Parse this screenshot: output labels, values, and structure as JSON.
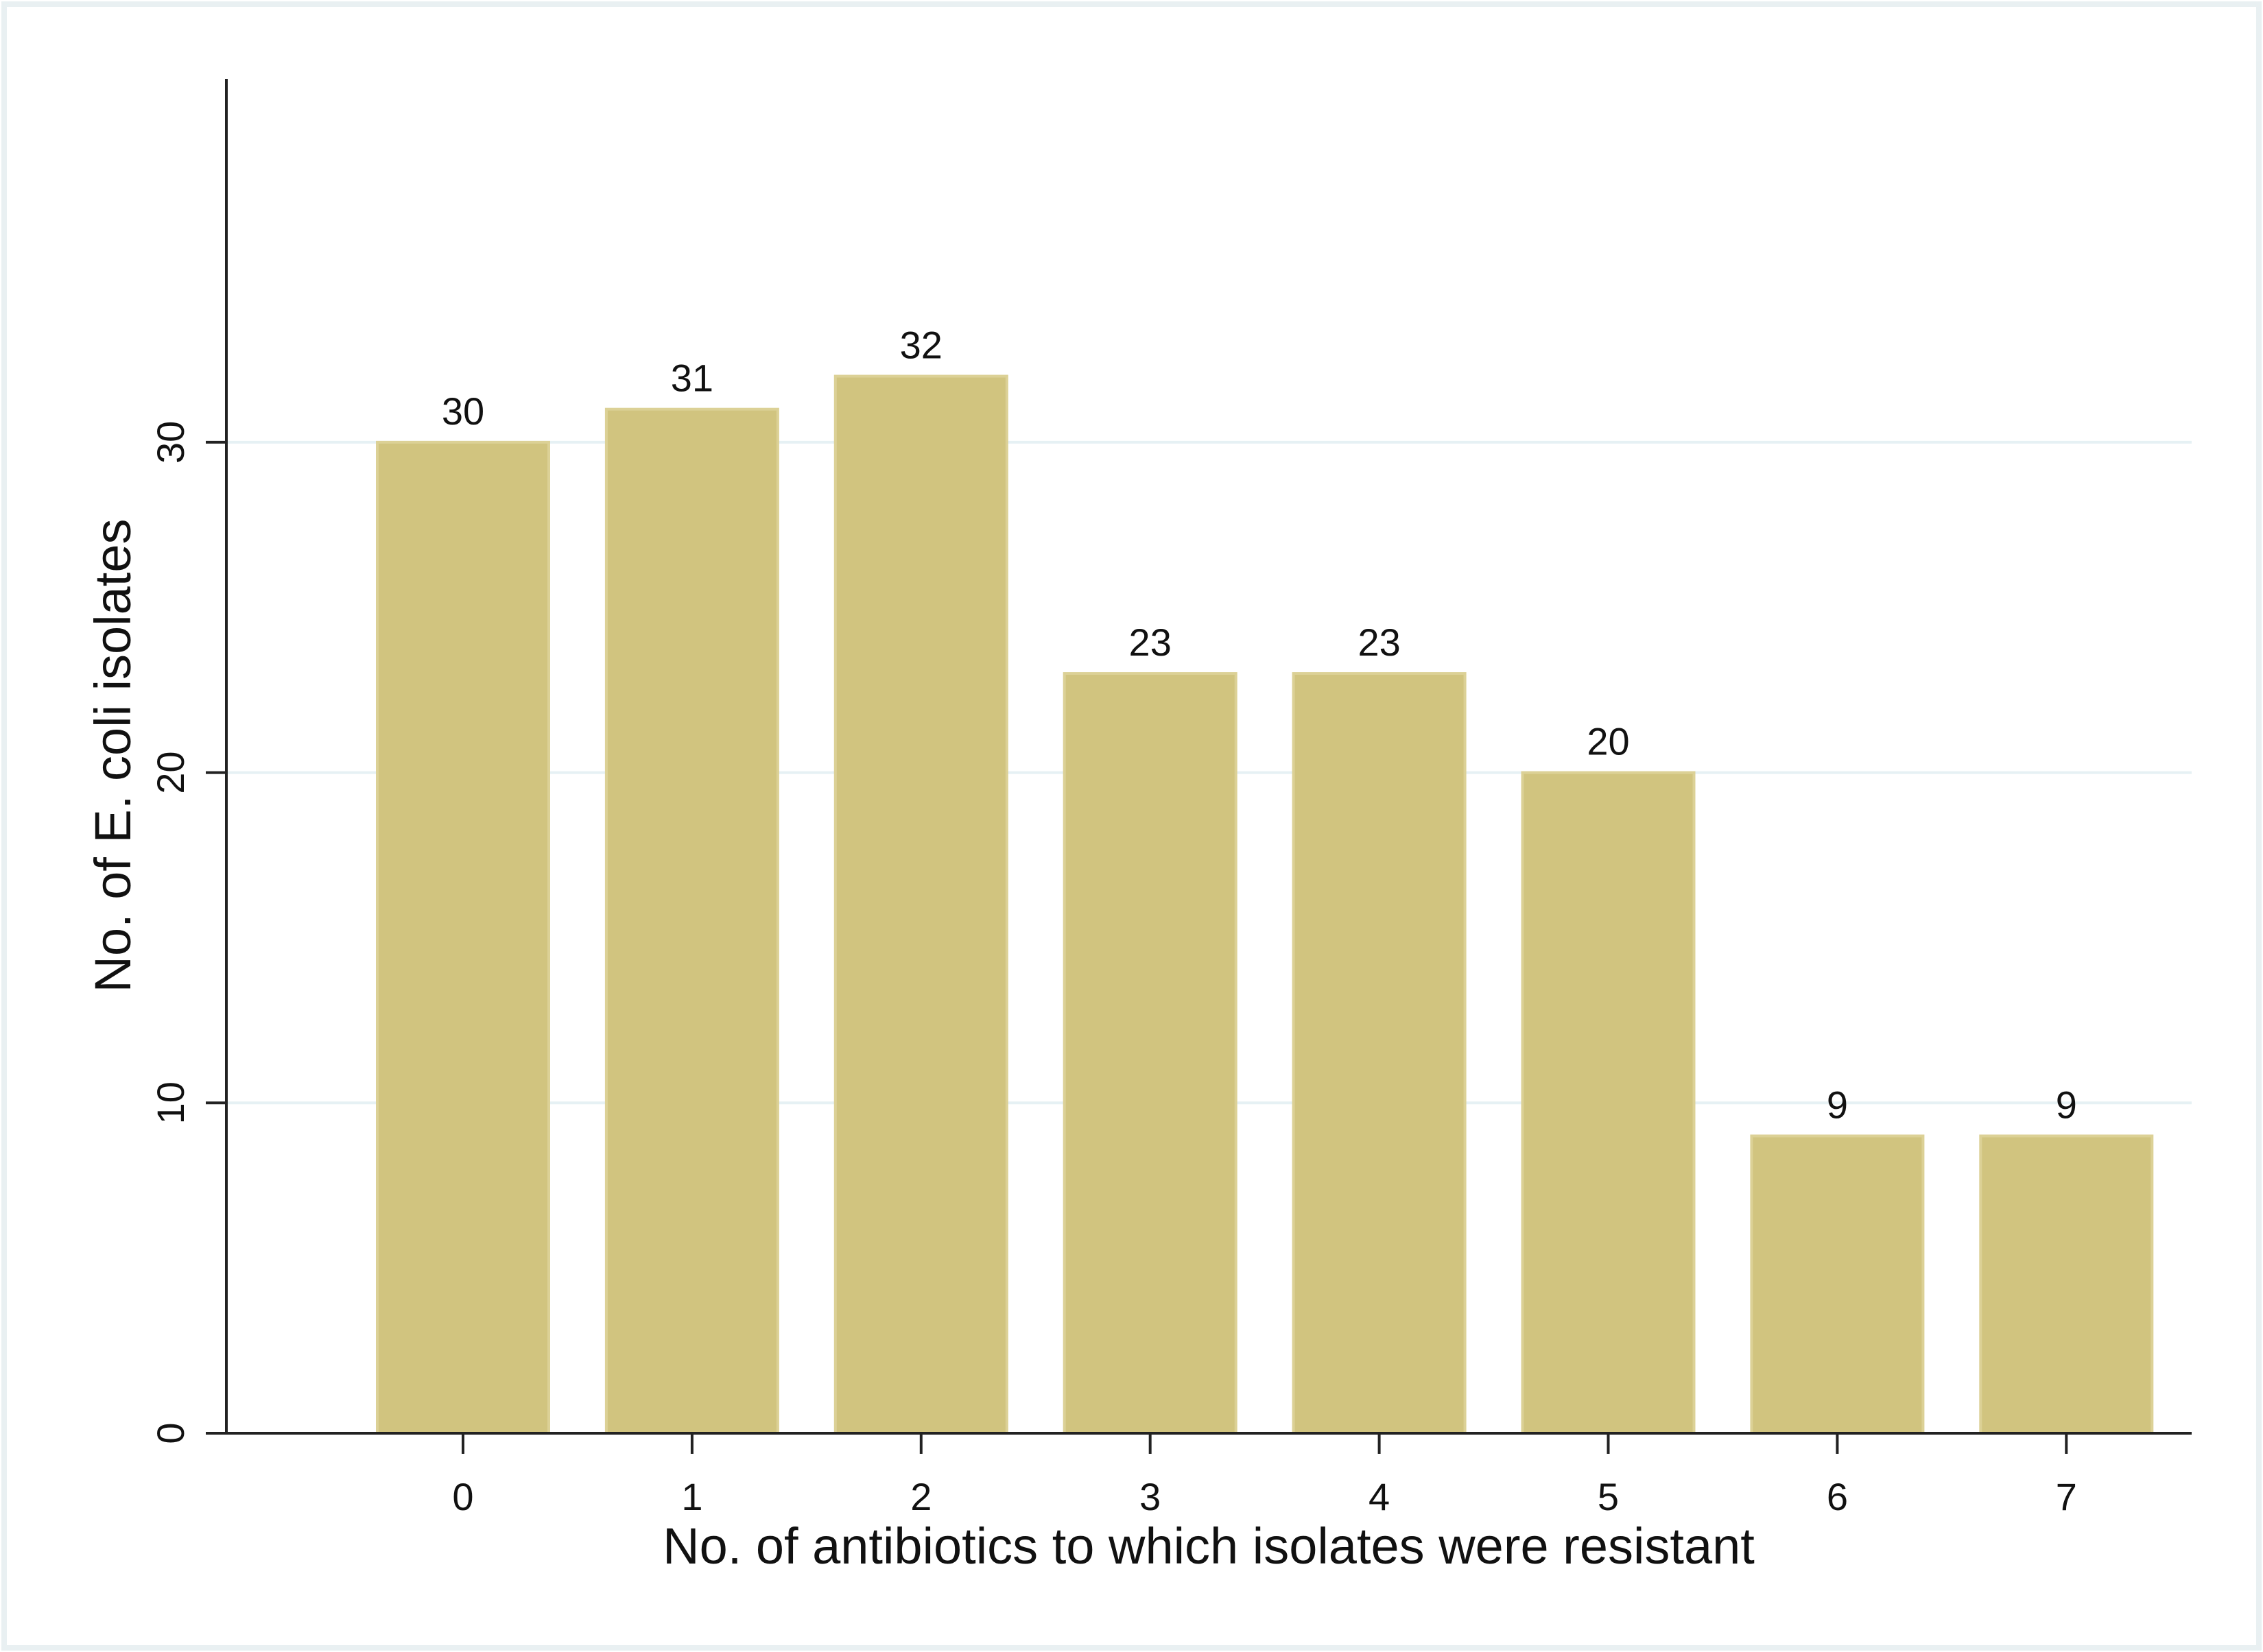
{
  "chart_data": {
    "type": "bar",
    "title": "",
    "xlabel": "No. of antibiotics to which isolates were resistant",
    "ylabel": "No. of E. coli isolates",
    "categories": [
      "0",
      "1",
      "2",
      "3",
      "4",
      "5",
      "6",
      "7"
    ],
    "values": [
      30,
      31,
      32,
      23,
      23,
      20,
      9,
      9
    ],
    "data_labels": [
      "30",
      "31",
      "32",
      "23",
      "23",
      "20",
      "9",
      "9"
    ],
    "ylim": [
      0,
      41
    ],
    "yticks": [
      0,
      10,
      20,
      30
    ],
    "ytick_labels": [
      "0",
      "10",
      "20",
      "30"
    ],
    "grid": true,
    "legend": "none",
    "colors": {
      "bar_fill": "#d1c47f",
      "bar_edge": "#dcd196",
      "grid": "#e6f1f4",
      "axis": "#222222",
      "frame_border": "#e9f0f2"
    }
  }
}
